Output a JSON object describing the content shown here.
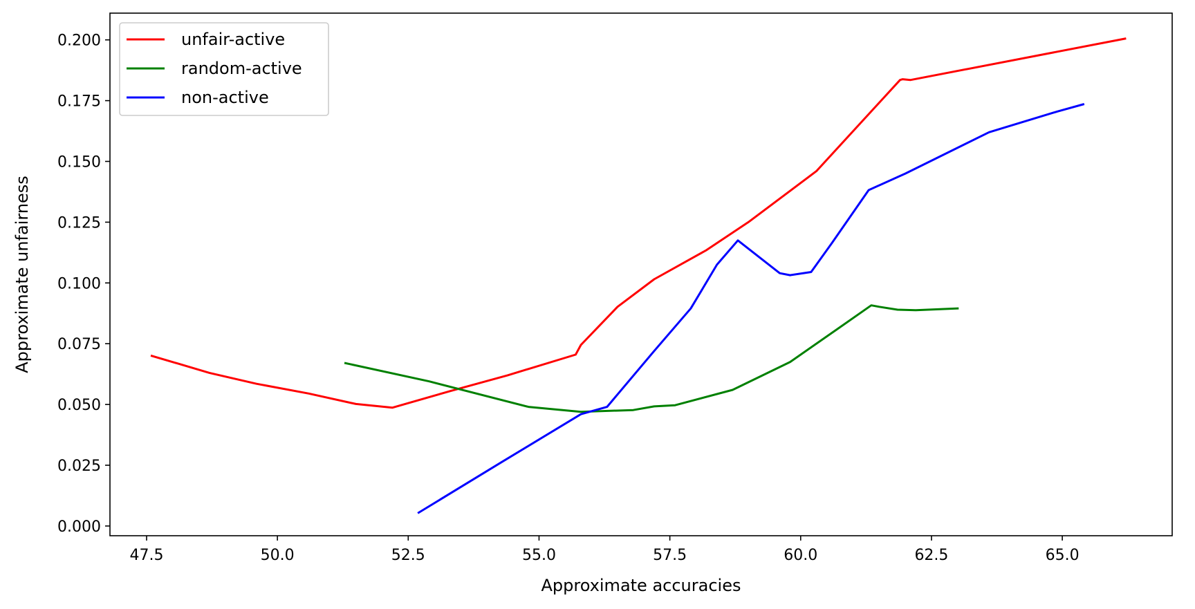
{
  "chart_data": {
    "type": "line",
    "xlabel": "Approximate accuracies",
    "ylabel": "Approximate unfairness",
    "xlim": [
      46.8,
      67.1
    ],
    "ylim": [
      -0.004,
      0.211
    ],
    "xticks": [
      47.5,
      50.0,
      52.5,
      55.0,
      57.5,
      60.0,
      62.5,
      65.0
    ],
    "xtick_labels": [
      "47.5",
      "50.0",
      "52.5",
      "55.0",
      "57.5",
      "60.0",
      "62.5",
      "65.0"
    ],
    "yticks": [
      0.0,
      0.025,
      0.05,
      0.075,
      0.1,
      0.125,
      0.15,
      0.175,
      0.2
    ],
    "ytick_labels": [
      "0.000",
      "0.025",
      "0.050",
      "0.075",
      "0.100",
      "0.125",
      "0.150",
      "0.175",
      "0.200"
    ],
    "grid": false,
    "legend_position": "top-left",
    "series": [
      {
        "name": "unfair-active",
        "color": "#ff0000",
        "x": [
          47.6,
          48.7,
          49.6,
          50.6,
          51.5,
          52.2,
          53.3,
          54.4,
          55.7,
          55.8,
          56.5,
          57.2,
          58.2,
          59.0,
          60.3,
          61.9,
          61.95,
          62.1,
          66.2
        ],
        "y": [
          0.07,
          0.063,
          0.0585,
          0.0545,
          0.0502,
          0.0487,
          0.0555,
          0.062,
          0.0705,
          0.0745,
          0.0902,
          0.1015,
          0.1135,
          0.125,
          0.146,
          0.1835,
          0.1838,
          0.1835,
          0.2005
        ]
      },
      {
        "name": "random-active",
        "color": "#008000",
        "x": [
          51.3,
          52.9,
          54.8,
          55.8,
          56.8,
          57.2,
          57.6,
          58.7,
          59.8,
          60.7,
          61.35,
          61.5,
          61.85,
          62.2,
          63.0
        ],
        "y": [
          0.067,
          0.0595,
          0.049,
          0.047,
          0.0477,
          0.0492,
          0.0497,
          0.056,
          0.0675,
          0.081,
          0.0908,
          0.0902,
          0.089,
          0.0888,
          0.0895
        ]
      },
      {
        "name": "non-active",
        "color": "#0000ff",
        "x": [
          52.7,
          54.3,
          55.8,
          56.3,
          57.2,
          57.9,
          58.4,
          58.8,
          59.6,
          59.8,
          60.2,
          60.6,
          61.3,
          62.0,
          63.6,
          64.9,
          65.4
        ],
        "y": [
          0.0055,
          0.0265,
          0.046,
          0.049,
          0.072,
          0.0895,
          0.1075,
          0.1175,
          0.104,
          0.1032,
          0.1045,
          0.1165,
          0.1382,
          0.145,
          0.162,
          0.1705,
          0.1735
        ]
      }
    ]
  }
}
